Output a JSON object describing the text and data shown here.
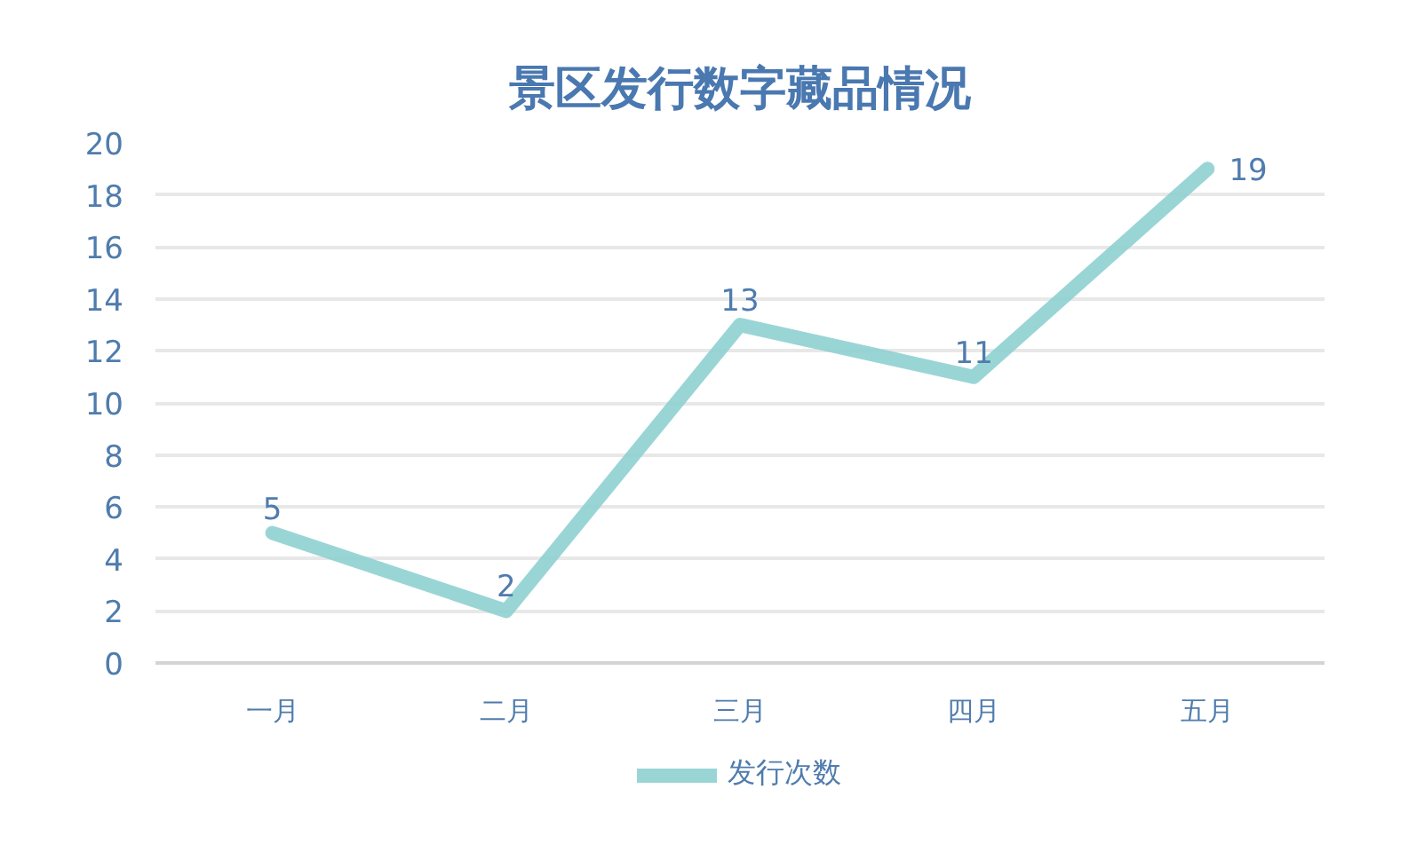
{
  "chart_data": {
    "type": "line",
    "title": "景区发行数字藏品情况",
    "categories": [
      "一月",
      "二月",
      "三月",
      "四月",
      "五月"
    ],
    "series": [
      {
        "name": "发行次数",
        "color": "#8fd0d2",
        "values": [
          5,
          2,
          13,
          11,
          19
        ]
      }
    ],
    "ylim": [
      0,
      20
    ],
    "yticks": [
      0,
      2,
      4,
      6,
      8,
      10,
      12,
      14,
      16,
      18,
      20
    ],
    "grid": "y",
    "legend": "bottom",
    "data_labels": true,
    "line_style": "solid"
  }
}
